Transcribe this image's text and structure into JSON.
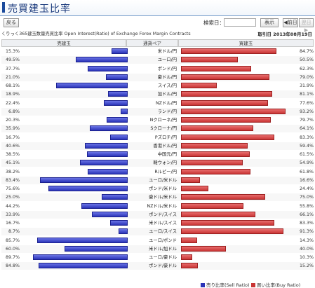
{
  "page": {
    "title": "売買建玉比率",
    "back_label": "戻る",
    "date_label": "検索日：",
    "date_value": "",
    "display_label": "表示",
    "prev_label": "◀前日",
    "next_label": "翌日▶",
    "info_text": "くりっく365建玉数量売買比率 Open Interest(Ratio) of Exchange Forex Margin Contracts",
    "trade_date": "取引日 2013年08月19日"
  },
  "table": {
    "header_sell": "売建玉",
    "header_pair": "通貨ペア",
    "header_buy": "買建玉"
  },
  "chart_data": {
    "type": "bar",
    "rows": [
      {
        "pair": "米ドル/円",
        "sell": "15.3%",
        "buy": "84.7%"
      },
      {
        "pair": "ユーロ/円",
        "sell": "49.5%",
        "buy": "50.5%"
      },
      {
        "pair": "ポンド/円",
        "sell": "37.7%",
        "buy": "62.3%"
      },
      {
        "pair": "豪ドル/円",
        "sell": "21.0%",
        "buy": "79.0%"
      },
      {
        "pair": "スイス/円",
        "sell": "68.1%",
        "buy": "31.9%"
      },
      {
        "pair": "加ドル/円",
        "sell": "18.9%",
        "buy": "81.1%"
      },
      {
        "pair": "NZドル/円",
        "sell": "22.4%",
        "buy": "77.6%"
      },
      {
        "pair": "ランド/円",
        "sell": "6.8%",
        "buy": "93.2%"
      },
      {
        "pair": "Nクローネ/円",
        "sell": "20.3%",
        "buy": "79.7%"
      },
      {
        "pair": "Sクローナ/円",
        "sell": "35.9%",
        "buy": "64.1%"
      },
      {
        "pair": "Pズロチ/円",
        "sell": "16.7%",
        "buy": "83.3%"
      },
      {
        "pair": "香港ドル/円",
        "sell": "40.6%",
        "buy": "59.4%"
      },
      {
        "pair": "中国元/円",
        "sell": "38.5%",
        "buy": "61.5%"
      },
      {
        "pair": "韓ウォン/円",
        "sell": "45.1%",
        "buy": "54.9%"
      },
      {
        "pair": "Rルピー/円",
        "sell": "38.2%",
        "buy": "61.8%"
      },
      {
        "pair": "ユーロ/米ドル",
        "sell": "83.4%",
        "buy": "16.6%"
      },
      {
        "pair": "ポンド/米ドル",
        "sell": "75.6%",
        "buy": "24.4%"
      },
      {
        "pair": "豪ドル/米ドル",
        "sell": "25.0%",
        "buy": "75.0%"
      },
      {
        "pair": "NZドル/米ドル",
        "sell": "44.2%",
        "buy": "55.8%"
      },
      {
        "pair": "ポンド/スイス",
        "sell": "33.9%",
        "buy": "66.1%"
      },
      {
        "pair": "米ドル/スイス",
        "sell": "16.7%",
        "buy": "83.3%"
      },
      {
        "pair": "ユーロ/スイス",
        "sell": "8.7%",
        "buy": "91.3%"
      },
      {
        "pair": "ユーロ/ポンド",
        "sell": "85.7%",
        "buy": "14.3%"
      },
      {
        "pair": "米ドル/加ドル",
        "sell": "60.0%",
        "buy": "40.0%"
      },
      {
        "pair": "ユーロ/豪ドル",
        "sell": "89.7%",
        "buy": "10.3%"
      },
      {
        "pair": "ポンド/豪ドル",
        "sell": "84.8%",
        "buy": "15.2%"
      }
    ],
    "legend": {
      "sell": "売り比率(Sell Ratio)",
      "buy": "買い比率(Buy Ratio)"
    },
    "colors": {
      "sell": "#2b34b8",
      "buy": "#c93535"
    }
  }
}
